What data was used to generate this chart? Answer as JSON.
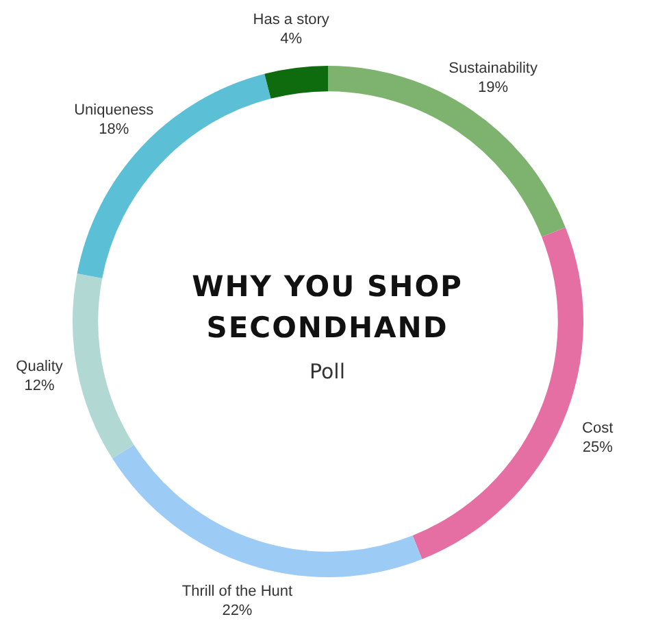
{
  "chart_data": {
    "type": "donut",
    "title": "WHY YOU SHOP SECONDHAND",
    "subtitle": "Poll",
    "categories": [
      "Sustainability",
      "Cost",
      "Thrill of the Hunt",
      "Quality",
      "Uniqueness",
      "Has a story"
    ],
    "values": [
      19,
      25,
      22,
      12,
      18,
      4
    ],
    "value_labels": [
      "19%",
      "25%",
      "22%",
      "12%",
      "18%",
      "4%"
    ],
    "colors": [
      "#7db36f",
      "#e56fa3",
      "#9ccbf5",
      "#b2d8d4",
      "#5bbfd6",
      "#0e6b0e"
    ],
    "legend": false
  }
}
